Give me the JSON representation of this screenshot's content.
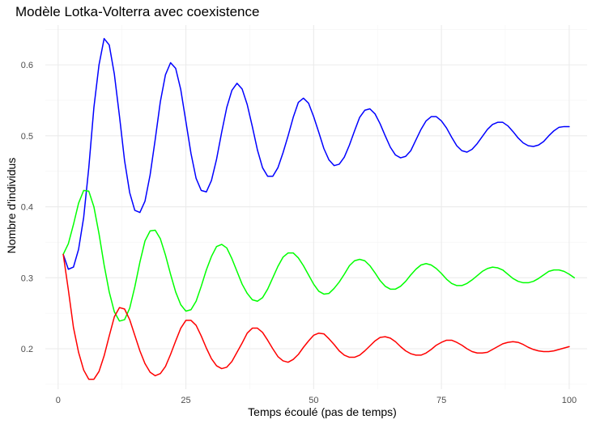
{
  "chart_data": {
    "type": "line",
    "title": "Modèle Lotka-Volterra avec coexistence",
    "xlabel": "Temps écoulé (pas de temps)",
    "ylabel": "Nombre d'individus",
    "xlim": [
      -2.5,
      103.5
    ],
    "ylim": [
      0.143,
      0.656
    ],
    "x_ticks": [
      0,
      25,
      50,
      75,
      100
    ],
    "y_ticks": [
      0.2,
      0.3,
      0.4,
      0.5,
      0.6
    ],
    "x_tick_labels": [
      "0",
      "25",
      "50",
      "75",
      "100"
    ],
    "y_tick_labels": [
      "0.2",
      "0.3",
      "0.4",
      "0.5",
      "0.6"
    ],
    "grid": true,
    "legend": "none",
    "series": [
      {
        "color": "#0000ff",
        "points": [
          [
            1,
            0.333
          ],
          [
            2,
            0.312
          ],
          [
            3,
            0.315
          ],
          [
            4,
            0.34
          ],
          [
            5,
            0.385
          ],
          [
            6,
            0.455
          ],
          [
            7,
            0.54
          ],
          [
            8,
            0.6
          ],
          [
            9,
            0.637
          ],
          [
            10,
            0.628
          ],
          [
            11,
            0.587
          ],
          [
            12,
            0.528
          ],
          [
            13,
            0.465
          ],
          [
            14,
            0.42
          ],
          [
            15,
            0.395
          ],
          [
            16,
            0.392
          ],
          [
            17,
            0.408
          ],
          [
            18,
            0.445
          ],
          [
            19,
            0.495
          ],
          [
            20,
            0.548
          ],
          [
            21,
            0.586
          ],
          [
            22,
            0.603
          ],
          [
            23,
            0.595
          ],
          [
            24,
            0.565
          ],
          [
            25,
            0.52
          ],
          [
            26,
            0.475
          ],
          [
            27,
            0.44
          ],
          [
            28,
            0.423
          ],
          [
            29,
            0.421
          ],
          [
            30,
            0.437
          ],
          [
            31,
            0.467
          ],
          [
            32,
            0.505
          ],
          [
            33,
            0.54
          ],
          [
            34,
            0.564
          ],
          [
            35,
            0.574
          ],
          [
            36,
            0.566
          ],
          [
            37,
            0.544
          ],
          [
            38,
            0.513
          ],
          [
            39,
            0.48
          ],
          [
            40,
            0.455
          ],
          [
            41,
            0.443
          ],
          [
            42,
            0.443
          ],
          [
            43,
            0.455
          ],
          [
            44,
            0.476
          ],
          [
            45,
            0.5
          ],
          [
            46,
            0.526
          ],
          [
            47,
            0.547
          ],
          [
            48,
            0.553
          ],
          [
            49,
            0.546
          ],
          [
            50,
            0.527
          ],
          [
            51,
            0.505
          ],
          [
            52,
            0.482
          ],
          [
            53,
            0.466
          ],
          [
            54,
            0.458
          ],
          [
            55,
            0.46
          ],
          [
            56,
            0.47
          ],
          [
            57,
            0.487
          ],
          [
            58,
            0.507
          ],
          [
            59,
            0.526
          ],
          [
            60,
            0.536
          ],
          [
            61,
            0.538
          ],
          [
            62,
            0.531
          ],
          [
            63,
            0.517
          ],
          [
            64,
            0.5
          ],
          [
            65,
            0.484
          ],
          [
            66,
            0.473
          ],
          [
            67,
            0.469
          ],
          [
            68,
            0.471
          ],
          [
            69,
            0.479
          ],
          [
            70,
            0.494
          ],
          [
            71,
            0.509
          ],
          [
            72,
            0.521
          ],
          [
            73,
            0.527
          ],
          [
            74,
            0.527
          ],
          [
            75,
            0.521
          ],
          [
            76,
            0.511
          ],
          [
            77,
            0.498
          ],
          [
            78,
            0.486
          ],
          [
            79,
            0.479
          ],
          [
            80,
            0.477
          ],
          [
            81,
            0.481
          ],
          [
            82,
            0.489
          ],
          [
            83,
            0.499
          ],
          [
            84,
            0.509
          ],
          [
            85,
            0.516
          ],
          [
            86,
            0.519
          ],
          [
            87,
            0.519
          ],
          [
            88,
            0.514
          ],
          [
            89,
            0.506
          ],
          [
            90,
            0.497
          ],
          [
            91,
            0.49
          ],
          [
            92,
            0.486
          ],
          [
            93,
            0.485
          ],
          [
            94,
            0.487
          ],
          [
            95,
            0.492
          ],
          [
            96,
            0.5
          ],
          [
            97,
            0.507
          ],
          [
            98,
            0.512
          ],
          [
            99,
            0.513
          ],
          [
            100,
            0.513
          ]
        ]
      },
      {
        "color": "#00ff00",
        "points": [
          [
            1,
            0.333
          ],
          [
            2,
            0.348
          ],
          [
            3,
            0.375
          ],
          [
            4,
            0.405
          ],
          [
            5,
            0.423
          ],
          [
            6,
            0.422
          ],
          [
            7,
            0.4
          ],
          [
            8,
            0.362
          ],
          [
            9,
            0.318
          ],
          [
            10,
            0.28
          ],
          [
            11,
            0.252
          ],
          [
            12,
            0.239
          ],
          [
            13,
            0.241
          ],
          [
            14,
            0.257
          ],
          [
            15,
            0.287
          ],
          [
            16,
            0.322
          ],
          [
            17,
            0.352
          ],
          [
            18,
            0.366
          ],
          [
            19,
            0.367
          ],
          [
            20,
            0.355
          ],
          [
            21,
            0.332
          ],
          [
            22,
            0.305
          ],
          [
            23,
            0.28
          ],
          [
            24,
            0.262
          ],
          [
            25,
            0.253
          ],
          [
            26,
            0.255
          ],
          [
            27,
            0.267
          ],
          [
            28,
            0.288
          ],
          [
            29,
            0.311
          ],
          [
            30,
            0.33
          ],
          [
            31,
            0.344
          ],
          [
            32,
            0.347
          ],
          [
            33,
            0.342
          ],
          [
            34,
            0.327
          ],
          [
            35,
            0.309
          ],
          [
            36,
            0.291
          ],
          [
            37,
            0.278
          ],
          [
            38,
            0.269
          ],
          [
            39,
            0.267
          ],
          [
            40,
            0.272
          ],
          [
            41,
            0.284
          ],
          [
            42,
            0.3
          ],
          [
            43,
            0.316
          ],
          [
            44,
            0.329
          ],
          [
            45,
            0.335
          ],
          [
            46,
            0.335
          ],
          [
            47,
            0.328
          ],
          [
            48,
            0.317
          ],
          [
            49,
            0.304
          ],
          [
            50,
            0.291
          ],
          [
            51,
            0.281
          ],
          [
            52,
            0.277
          ],
          [
            53,
            0.278
          ],
          [
            54,
            0.285
          ],
          [
            55,
            0.294
          ],
          [
            56,
            0.305
          ],
          [
            57,
            0.317
          ],
          [
            58,
            0.324
          ],
          [
            59,
            0.326
          ],
          [
            60,
            0.324
          ],
          [
            61,
            0.317
          ],
          [
            62,
            0.307
          ],
          [
            63,
            0.296
          ],
          [
            64,
            0.288
          ],
          [
            65,
            0.284
          ],
          [
            66,
            0.284
          ],
          [
            67,
            0.288
          ],
          [
            68,
            0.295
          ],
          [
            69,
            0.304
          ],
          [
            70,
            0.312
          ],
          [
            71,
            0.318
          ],
          [
            72,
            0.32
          ],
          [
            73,
            0.318
          ],
          [
            74,
            0.313
          ],
          [
            75,
            0.306
          ],
          [
            76,
            0.298
          ],
          [
            77,
            0.292
          ],
          [
            78,
            0.289
          ],
          [
            79,
            0.289
          ],
          [
            80,
            0.292
          ],
          [
            81,
            0.297
          ],
          [
            82,
            0.303
          ],
          [
            83,
            0.309
          ],
          [
            84,
            0.313
          ],
          [
            85,
            0.315
          ],
          [
            86,
            0.314
          ],
          [
            87,
            0.311
          ],
          [
            88,
            0.305
          ],
          [
            89,
            0.299
          ],
          [
            90,
            0.295
          ],
          [
            91,
            0.293
          ],
          [
            92,
            0.293
          ],
          [
            93,
            0.295
          ],
          [
            94,
            0.299
          ],
          [
            95,
            0.304
          ],
          [
            96,
            0.309
          ],
          [
            97,
            0.311
          ],
          [
            98,
            0.311
          ],
          [
            99,
            0.309
          ],
          [
            100,
            0.305
          ],
          [
            101,
            0.3
          ]
        ]
      },
      {
        "color": "#ff0000",
        "points": [
          [
            1,
            0.333
          ],
          [
            2,
            0.283
          ],
          [
            3,
            0.23
          ],
          [
            4,
            0.195
          ],
          [
            5,
            0.17
          ],
          [
            6,
            0.157
          ],
          [
            7,
            0.157
          ],
          [
            8,
            0.168
          ],
          [
            9,
            0.19
          ],
          [
            10,
            0.218
          ],
          [
            11,
            0.245
          ],
          [
            12,
            0.258
          ],
          [
            13,
            0.256
          ],
          [
            14,
            0.241
          ],
          [
            15,
            0.219
          ],
          [
            16,
            0.197
          ],
          [
            17,
            0.179
          ],
          [
            18,
            0.167
          ],
          [
            19,
            0.162
          ],
          [
            20,
            0.165
          ],
          [
            21,
            0.175
          ],
          [
            22,
            0.192
          ],
          [
            23,
            0.211
          ],
          [
            24,
            0.229
          ],
          [
            25,
            0.24
          ],
          [
            26,
            0.24
          ],
          [
            27,
            0.233
          ],
          [
            28,
            0.218
          ],
          [
            29,
            0.201
          ],
          [
            30,
            0.186
          ],
          [
            31,
            0.176
          ],
          [
            32,
            0.172
          ],
          [
            33,
            0.174
          ],
          [
            34,
            0.182
          ],
          [
            35,
            0.195
          ],
          [
            36,
            0.208
          ],
          [
            37,
            0.222
          ],
          [
            38,
            0.229
          ],
          [
            39,
            0.229
          ],
          [
            40,
            0.223
          ],
          [
            41,
            0.212
          ],
          [
            42,
            0.2
          ],
          [
            43,
            0.189
          ],
          [
            44,
            0.183
          ],
          [
            45,
            0.181
          ],
          [
            46,
            0.185
          ],
          [
            47,
            0.192
          ],
          [
            48,
            0.202
          ],
          [
            49,
            0.211
          ],
          [
            50,
            0.219
          ],
          [
            51,
            0.222
          ],
          [
            52,
            0.221
          ],
          [
            53,
            0.214
          ],
          [
            54,
            0.206
          ],
          [
            55,
            0.197
          ],
          [
            56,
            0.191
          ],
          [
            57,
            0.188
          ],
          [
            58,
            0.188
          ],
          [
            59,
            0.191
          ],
          [
            60,
            0.197
          ],
          [
            61,
            0.204
          ],
          [
            62,
            0.211
          ],
          [
            63,
            0.216
          ],
          [
            64,
            0.217
          ],
          [
            65,
            0.215
          ],
          [
            66,
            0.21
          ],
          [
            67,
            0.203
          ],
          [
            68,
            0.197
          ],
          [
            69,
            0.193
          ],
          [
            70,
            0.191
          ],
          [
            71,
            0.191
          ],
          [
            72,
            0.194
          ],
          [
            73,
            0.199
          ],
          [
            74,
            0.205
          ],
          [
            75,
            0.209
          ],
          [
            76,
            0.212
          ],
          [
            77,
            0.212
          ],
          [
            78,
            0.209
          ],
          [
            79,
            0.205
          ],
          [
            80,
            0.2
          ],
          [
            81,
            0.196
          ],
          [
            82,
            0.194
          ],
          [
            83,
            0.194
          ],
          [
            84,
            0.195
          ],
          [
            85,
            0.199
          ],
          [
            86,
            0.203
          ],
          [
            87,
            0.207
          ],
          [
            88,
            0.209
          ],
          [
            89,
            0.21
          ],
          [
            90,
            0.209
          ],
          [
            91,
            0.206
          ],
          [
            92,
            0.202
          ],
          [
            93,
            0.199
          ],
          [
            94,
            0.197
          ],
          [
            95,
            0.196
          ],
          [
            96,
            0.196
          ],
          [
            97,
            0.197
          ],
          [
            98,
            0.199
          ],
          [
            99,
            0.201
          ],
          [
            100,
            0.203
          ]
        ]
      }
    ]
  }
}
